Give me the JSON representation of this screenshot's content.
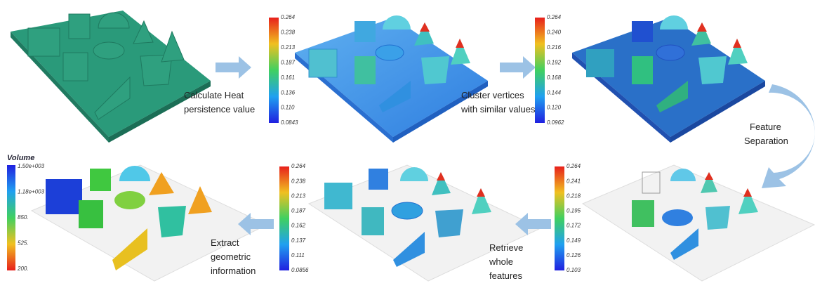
{
  "steps": [
    {
      "lines": [
        "Calculate Heat",
        "persistence value"
      ]
    },
    {
      "lines": [
        "Cluster vertices",
        "with similar values"
      ]
    },
    {
      "lines": [
        "Feature",
        "Separation"
      ]
    },
    {
      "lines": [
        "Retrieve",
        "whole",
        "features"
      ]
    },
    {
      "lines": [
        "Extract",
        "geometric",
        "information"
      ]
    }
  ],
  "colorbars": [
    {
      "ticks": [
        "0.264",
        "0.238",
        "0.213",
        "0.187",
        "0.161",
        "0.136",
        "0.110",
        "0.0843"
      ]
    },
    {
      "ticks": [
        "0.264",
        "0.240",
        "0.216",
        "0.192",
        "0.168",
        "0.144",
        "0.120",
        "0.0962"
      ]
    },
    {
      "ticks": [
        "0.264",
        "0.241",
        "0.218",
        "0.195",
        "0.172",
        "0.149",
        "0.126",
        "0.103"
      ]
    },
    {
      "ticks": [
        "0.264",
        "0.238",
        "0.213",
        "0.187",
        "0.162",
        "0.137",
        "0.111",
        "0.0856"
      ]
    }
  ],
  "volume_legend": {
    "title": "Volume",
    "ticks": [
      "1.50e+003",
      "1.18e+003",
      "850.",
      "525.",
      "200."
    ]
  }
}
